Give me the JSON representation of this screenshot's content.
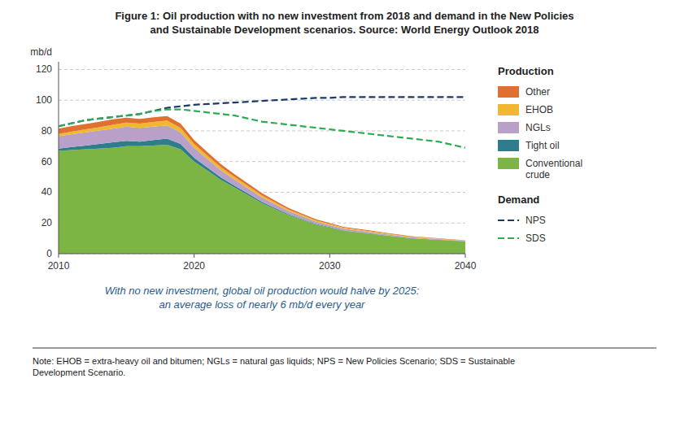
{
  "chart_data": {
    "type": "area",
    "stacked": true,
    "title": "Figure 1: Oil production with no new investment from 2018 and demand in the New Policies\nand Sustainable Development scenarios. Source: World Energy Outlook 2018",
    "subtitle": "With no new investment, global oil production would halve by 2025:\nan average loss of nearly 6 mb/d every year",
    "note": "Note: EHOB = extra-heavy oil and bitumen; NGLs = natural gas liquids; NPS = New Policies Scenario; SDS = Sustainable\nDevelopment Scenario.",
    "y_label": "mb/d",
    "xlim": [
      2010,
      2040
    ],
    "ylim": [
      0,
      125
    ],
    "xticks": [
      2010,
      2020,
      2030,
      2040
    ],
    "yticks": [
      0,
      20,
      40,
      60,
      80,
      100,
      120
    ],
    "grid": true,
    "legend": "right",
    "x": [
      2010,
      2011,
      2012,
      2013,
      2014,
      2015,
      2016,
      2017,
      2018,
      2019,
      2020,
      2021,
      2022,
      2023,
      2024,
      2025,
      2026,
      2027,
      2028,
      2029,
      2030,
      2031,
      2032,
      2033,
      2034,
      2035,
      2036,
      2037,
      2038,
      2039,
      2040
    ],
    "series": [
      {
        "name": "Conventional\ncrude",
        "group": "Production",
        "type": "area",
        "color": "#7db544",
        "values": [
          67,
          67.5,
          68,
          68.5,
          69,
          70,
          70,
          70.5,
          71,
          68,
          60,
          54,
          48,
          43,
          38,
          33,
          29,
          25,
          22,
          19,
          17,
          15,
          14,
          13,
          12,
          11,
          10,
          9.5,
          9,
          8.5,
          8
        ]
      },
      {
        "name": "Tight oil",
        "group": "Production",
        "type": "area",
        "color": "#2e7d8c",
        "values": [
          1.5,
          2,
          2.5,
          3,
          3.5,
          3.5,
          3.0,
          3.5,
          4,
          3.5,
          2.5,
          2.0,
          1.5,
          1.2,
          1.0,
          0.8,
          0.6,
          0.5,
          0.4,
          0.3,
          0.3,
          0.2,
          0.2,
          0.2,
          0.1,
          0.1,
          0.1,
          0.1,
          0.1,
          0.05,
          0.05
        ]
      },
      {
        "name": "NGLs",
        "group": "Production",
        "type": "area",
        "color": "#b8a0c8",
        "values": [
          8,
          8.3,
          8.5,
          8.7,
          9,
          9.2,
          9.0,
          8.8,
          8.5,
          7.5,
          6.5,
          5.5,
          4.7,
          4.0,
          3.4,
          2.9,
          2.5,
          2.1,
          1.8,
          1.5,
          1.3,
          1.1,
          1.0,
          0.9,
          0.8,
          0.7,
          0.6,
          0.5,
          0.45,
          0.4,
          0.35
        ]
      },
      {
        "name": "EHOB",
        "group": "Production",
        "type": "area",
        "color": "#f0b830",
        "values": [
          1.5,
          1.8,
          2.0,
          2.2,
          2.5,
          2.7,
          2.8,
          3.0,
          3.2,
          3.0,
          2.5,
          2.2,
          1.9,
          1.7,
          1.5,
          1.3,
          1.1,
          1.0,
          0.9,
          0.8,
          0.7,
          0.6,
          0.55,
          0.5,
          0.45,
          0.4,
          0.35,
          0.3,
          0.25,
          0.22,
          0.2
        ]
      },
      {
        "name": "Other",
        "group": "Production",
        "type": "area",
        "color": "#e07030",
        "values": [
          3.5,
          3.5,
          3.5,
          3.5,
          3.5,
          3.2,
          3.0,
          3.0,
          3.0,
          2.8,
          2.5,
          2.2,
          2.0,
          1.8,
          1.6,
          1.4,
          1.2,
          1.0,
          0.9,
          0.8,
          0.7,
          0.6,
          0.55,
          0.5,
          0.45,
          0.4,
          0.35,
          0.3,
          0.25,
          0.22,
          0.2
        ]
      },
      {
        "name": "NPS",
        "group": "Demand",
        "type": "line",
        "line_style": "dashed",
        "color": "#1a3a6b",
        "values": [
          83,
          85,
          87,
          88,
          89,
          90,
          91,
          93,
          95,
          96,
          97,
          97.5,
          98,
          98.5,
          99,
          99.5,
          100,
          100.5,
          101,
          101.5,
          101.5,
          102,
          102,
          102,
          102,
          102,
          102,
          102,
          102,
          102,
          102
        ]
      },
      {
        "name": "SDS",
        "group": "Demand",
        "type": "line",
        "line_style": "dashed",
        "color": "#2eaa52",
        "values": [
          83,
          85,
          87,
          88,
          89,
          90,
          91,
          93,
          94,
          94,
          93,
          92,
          91,
          90,
          88,
          86,
          85,
          84,
          83,
          82,
          81,
          80,
          79,
          78,
          77,
          76,
          75,
          74,
          73,
          71,
          69
        ]
      }
    ]
  }
}
